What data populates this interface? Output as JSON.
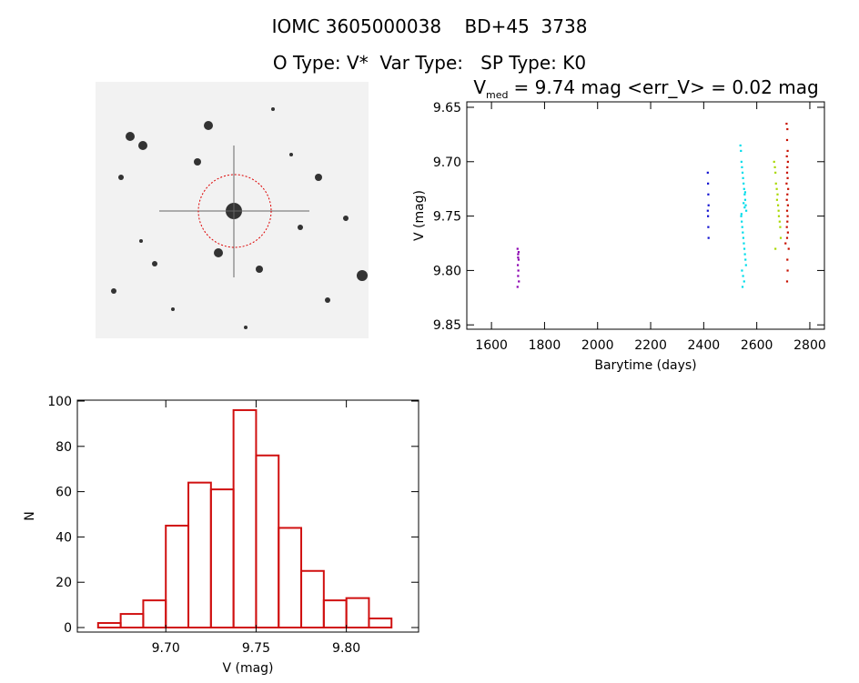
{
  "header": {
    "title": "IOMC 3605000038    BD+45  3738",
    "subtitle": "O Type: V*  Var Type:   SP Type: K0"
  },
  "chart_data": [
    {
      "type": "scatter",
      "title_parts": [
        "V",
        "med",
        "= 9.74 mag <err_V> = 0.02 mag"
      ],
      "x_label": "Barytime (days)",
      "y_label": "V (mag)",
      "xlim": [
        1507,
        2855
      ],
      "ylim": [
        9.854,
        9.645
      ],
      "xticks": [
        1600,
        1800,
        2000,
        2200,
        2400,
        2600,
        2800
      ],
      "yticks": [
        9.65,
        {
          "value": 9.7,
          "label": "9.70"
        },
        9.75,
        {
          "value": 9.8,
          "label": "9.80"
        },
        9.85
      ],
      "series": [
        {
          "color": "#8a00b0",
          "x": [
            1698,
            1700,
            1702,
            1699,
            1701,
            1700,
            1703,
            1698,
            1700,
            1702
          ],
          "values": [
            9.78,
            9.785,
            9.79,
            9.795,
            9.8,
            9.805,
            9.81,
            9.815,
            9.788,
            9.783
          ]
        },
        {
          "color": "#1010d0",
          "x": [
            2415,
            2416,
            2417,
            2418,
            2416,
            2417,
            2418,
            2415
          ],
          "values": [
            9.71,
            9.72,
            9.73,
            9.74,
            9.75,
            9.76,
            9.77,
            9.745
          ]
        },
        {
          "color": "#00dcea",
          "x": [
            2538,
            2540,
            2542,
            2544,
            2546,
            2548,
            2550,
            2552,
            2554,
            2556,
            2558,
            2560,
            2541,
            2543,
            2545,
            2547,
            2549,
            2551,
            2553,
            2555,
            2557,
            2559,
            2544,
            2548,
            2552,
            2546,
            2550,
            2554,
            2542,
            2556
          ],
          "values": [
            9.685,
            9.69,
            9.7,
            9.705,
            9.71,
            9.715,
            9.72,
            9.725,
            9.73,
            9.735,
            9.74,
            9.745,
            9.75,
            9.755,
            9.76,
            9.765,
            9.77,
            9.775,
            9.78,
            9.785,
            9.79,
            9.795,
            9.8,
            9.805,
            9.81,
            9.815,
            9.738,
            9.742,
            9.748,
            9.728
          ]
        },
        {
          "color": "#a8d800",
          "x": [
            2665,
            2668,
            2670,
            2672,
            2675,
            2678,
            2680,
            2683,
            2686,
            2688,
            2690,
            2670,
            2676,
            2682
          ],
          "values": [
            9.7,
            9.705,
            9.71,
            9.72,
            9.725,
            9.73,
            9.74,
            9.75,
            9.755,
            9.76,
            9.77,
            9.78,
            9.735,
            9.745
          ]
        },
        {
          "color": "#c81000",
          "x": [
            2712,
            2715,
            2714,
            2716,
            2713,
            2717,
            2715,
            2714,
            2716,
            2712,
            2718,
            2715,
            2713,
            2717,
            2714,
            2716,
            2715,
            2713,
            2717,
            2714,
            2708,
            2720,
            2715,
            2716,
            2714
          ],
          "values": [
            9.665,
            9.67,
            9.68,
            9.69,
            9.695,
            9.7,
            9.705,
            9.71,
            9.715,
            9.72,
            9.725,
            9.73,
            9.735,
            9.74,
            9.745,
            9.75,
            9.755,
            9.76,
            9.765,
            9.77,
            9.775,
            9.78,
            9.79,
            9.8,
            9.81
          ]
        }
      ]
    },
    {
      "type": "histogram",
      "x_label": "V (mag)",
      "y_label": "N",
      "xlim": [
        9.651,
        9.84
      ],
      "ylim": [
        -2,
        100.4
      ],
      "xticks": [
        {
          "value": 9.7,
          "label": "9.70"
        },
        9.75,
        {
          "value": 9.8,
          "label": "9.80"
        }
      ],
      "yticks": [
        0,
        20,
        40,
        60,
        80,
        100
      ],
      "color": "#d01010",
      "bins": [
        9.6625,
        9.675,
        9.6875,
        9.7,
        9.7125,
        9.725,
        9.7375,
        9.75,
        9.7625,
        9.775,
        9.7875,
        9.8,
        9.8125,
        9.825
      ],
      "values": [
        2,
        6,
        12,
        45,
        64,
        61,
        96,
        76,
        44,
        25,
        12,
        13,
        4
      ]
    }
  ]
}
